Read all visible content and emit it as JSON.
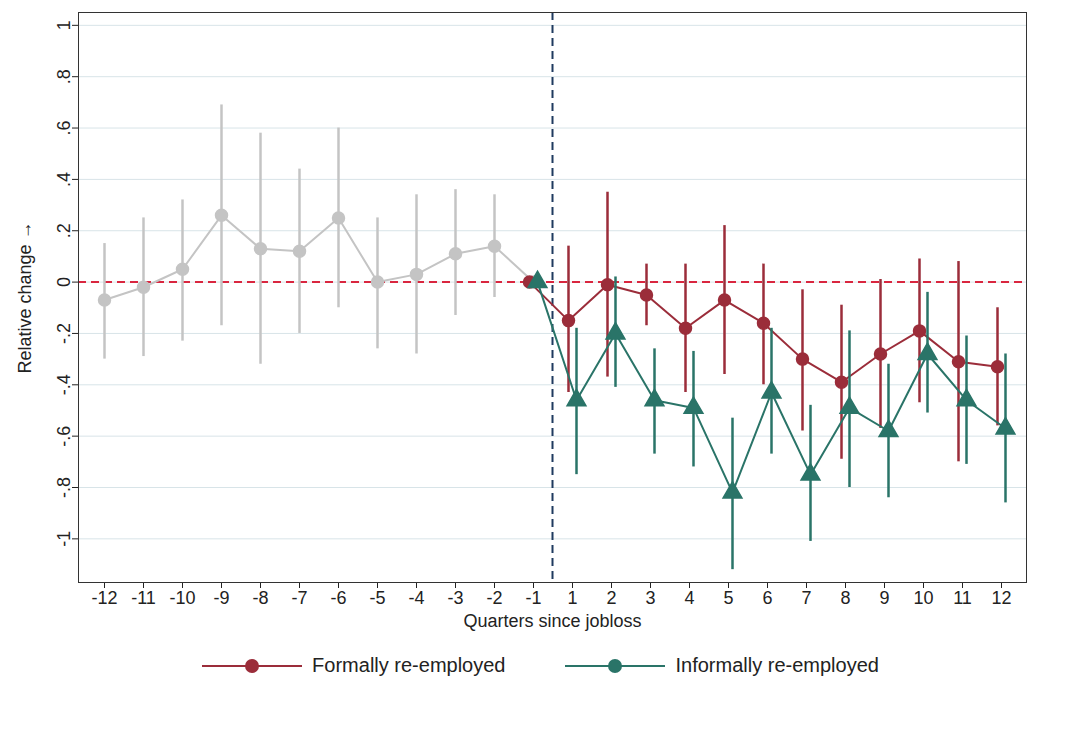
{
  "chart_data": {
    "type": "line",
    "x_label": "Quarters since jobloss",
    "y_label": "Relative change",
    "categories": [
      -12,
      -11,
      -10,
      -9,
      -8,
      -7,
      -6,
      -5,
      -4,
      -3,
      -2,
      -1,
      1,
      2,
      3,
      4,
      5,
      6,
      7,
      8,
      9,
      10,
      11,
      12
    ],
    "ylim": [
      -1.17,
      1.05
    ],
    "yticks": [
      -1,
      {
        "value": -0.8,
        "label": "-.8"
      },
      {
        "value": -0.6,
        "label": "-.6"
      },
      {
        "value": -0.4,
        "label": "-.4"
      },
      {
        "value": -0.2,
        "label": "-.2"
      },
      0,
      {
        "value": 0.2,
        "label": ".2"
      },
      {
        "value": 0.4,
        "label": ".4"
      },
      {
        "value": 0.6,
        "label": ".6"
      },
      {
        "value": 0.8,
        "label": ".8"
      },
      1
    ],
    "grid": true,
    "legend": "bottom",
    "reference_lines": [
      {
        "axis": "y",
        "value": 0,
        "color": "#d9263f",
        "line_style": "dashed"
      },
      {
        "axis": "x",
        "between": [
          -1,
          1
        ],
        "color": "#1f3a5f",
        "line_style": "dashed"
      }
    ],
    "series": [
      {
        "color": "#c4c4c4",
        "marker": "circle",
        "x": [
          -12,
          -11,
          -10,
          -9,
          -8,
          -7,
          -6,
          -5,
          -4,
          -3,
          -2,
          -1
        ],
        "values": [
          -0.07,
          -0.02,
          0.05,
          0.26,
          0.13,
          0.12,
          0.25,
          0.0,
          0.03,
          0.11,
          0.14,
          0
        ],
        "ci_low": [
          -0.3,
          -0.29,
          -0.23,
          -0.17,
          -0.32,
          -0.2,
          -0.1,
          -0.26,
          -0.28,
          -0.13,
          -0.06,
          0
        ],
        "ci_high": [
          0.15,
          0.25,
          0.32,
          0.69,
          0.58,
          0.44,
          0.6,
          0.25,
          0.34,
          0.36,
          0.34,
          0
        ]
      },
      {
        "name": "Formally re-employed",
        "color": "#9b2d3a",
        "marker": "circle",
        "x": [
          -1,
          1,
          2,
          3,
          4,
          5,
          6,
          7,
          8,
          9,
          10,
          11,
          12
        ],
        "values": [
          0,
          -0.15,
          -0.01,
          -0.05,
          -0.18,
          -0.07,
          -0.16,
          -0.3,
          -0.39,
          -0.28,
          -0.19,
          -0.31,
          -0.33
        ],
        "ci_low": [
          0,
          -0.43,
          -0.37,
          -0.17,
          -0.43,
          -0.36,
          -0.4,
          -0.58,
          -0.69,
          -0.57,
          -0.47,
          -0.7,
          -0.56
        ],
        "ci_high": [
          0,
          0.14,
          0.35,
          0.07,
          0.07,
          0.22,
          0.07,
          -0.03,
          -0.09,
          0.01,
          0.09,
          0.08,
          -0.1
        ]
      },
      {
        "name": "Informally re-employed",
        "color": "#2a7468",
        "marker": "triangle",
        "x": [
          -1,
          1,
          2,
          3,
          4,
          5,
          6,
          7,
          8,
          9,
          10,
          11,
          12
        ],
        "values": [
          0,
          -0.46,
          -0.2,
          -0.46,
          -0.49,
          -0.82,
          -0.43,
          -0.75,
          -0.49,
          -0.58,
          -0.28,
          -0.46,
          -0.57
        ],
        "ci_low": [
          0,
          -0.75,
          -0.41,
          -0.67,
          -0.72,
          -1.12,
          -0.67,
          -1.01,
          -0.8,
          -0.84,
          -0.51,
          -0.71,
          -0.86
        ],
        "ci_high": [
          0,
          -0.18,
          0.02,
          -0.26,
          -0.27,
          -0.53,
          -0.18,
          -0.48,
          -0.19,
          -0.32,
          -0.04,
          -0.21,
          -0.28
        ]
      }
    ]
  }
}
